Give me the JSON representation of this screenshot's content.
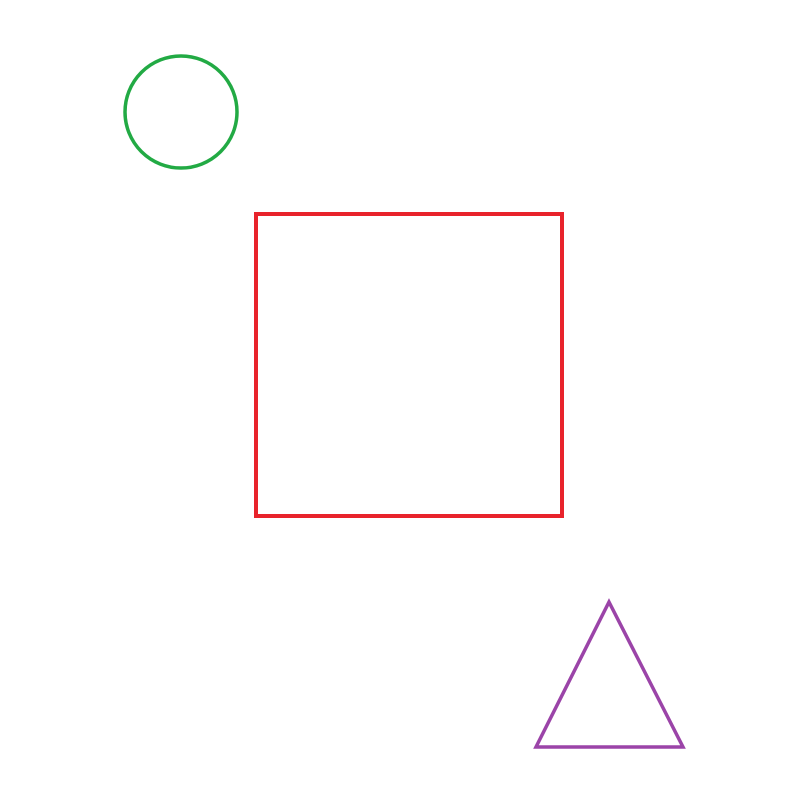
{
  "canvas": {
    "background": "#ffffff"
  },
  "shapes": {
    "circle": {
      "kind": "circle",
      "color": "#22aa44"
    },
    "square": {
      "kind": "square",
      "color": "#e8232b"
    },
    "triangle": {
      "kind": "triangle",
      "color": "#9b44a8"
    }
  }
}
